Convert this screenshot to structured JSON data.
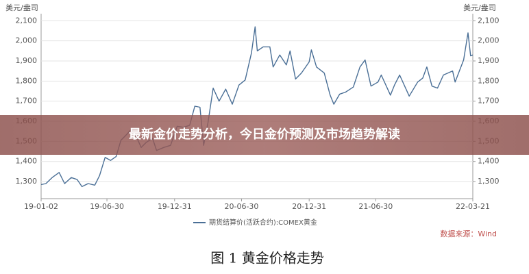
{
  "banner": {
    "title": "最新金价走势分析，今日金价预测及市场趋势解读"
  },
  "chart_data": {
    "type": "line",
    "caption": "图 1  黄金价格走势",
    "source": "数据来源：Wind",
    "y_label": "美元/盎司",
    "y2_label": "美元/盎司",
    "x": [
      "19-01-02",
      "19-01-15",
      "19-02-01",
      "19-02-20",
      "19-03-07",
      "19-03-25",
      "19-04-10",
      "19-04-23",
      "19-05-10",
      "19-05-28",
      "19-06-10",
      "19-06-25",
      "19-07-10",
      "19-07-25",
      "19-08-07",
      "19-08-23",
      "19-09-04",
      "19-09-20",
      "19-10-01",
      "19-10-15",
      "19-11-01",
      "19-11-12",
      "19-12-02",
      "19-12-20",
      "20-01-07",
      "20-01-24",
      "20-02-10",
      "20-02-24",
      "20-03-09",
      "20-03-19",
      "20-03-31",
      "20-04-14",
      "20-04-30",
      "20-05-18",
      "20-06-05",
      "20-06-23",
      "20-07-10",
      "20-07-27",
      "20-08-06",
      "20-08-12",
      "20-08-28",
      "20-09-15",
      "20-09-24",
      "20-10-12",
      "20-10-30",
      "20-11-09",
      "20-11-24",
      "20-12-10",
      "20-12-31",
      "21-01-06",
      "21-01-20",
      "21-02-10",
      "21-02-26",
      "21-03-08",
      "21-03-24",
      "21-04-09",
      "21-04-30",
      "21-05-18",
      "21-06-01",
      "21-06-17",
      "21-07-06",
      "21-07-15",
      "21-08-09",
      "21-08-20",
      "21-09-03",
      "21-09-29",
      "21-10-22",
      "21-11-05",
      "21-11-16",
      "21-11-30",
      "21-12-15",
      "21-12-31",
      "22-01-25",
      "22-02-01",
      "22-02-24",
      "22-03-08",
      "22-03-15",
      "22-03-21"
    ],
    "series": [
      {
        "name": "期货结算价(活跃合约):COMEX黄金",
        "color": "#4a6f96",
        "values": [
          1285,
          1290,
          1320,
          1345,
          1290,
          1320,
          1310,
          1275,
          1290,
          1282,
          1330,
          1420,
          1405,
          1425,
          1505,
          1535,
          1560,
          1515,
          1470,
          1495,
          1515,
          1455,
          1470,
          1480,
          1575,
          1570,
          1580,
          1675,
          1670,
          1480,
          1595,
          1765,
          1700,
          1760,
          1685,
          1780,
          1805,
          1940,
          2070,
          1950,
          1970,
          1970,
          1870,
          1930,
          1880,
          1950,
          1810,
          1840,
          1895,
          1955,
          1870,
          1840,
          1730,
          1685,
          1735,
          1745,
          1770,
          1870,
          1905,
          1775,
          1795,
          1830,
          1730,
          1780,
          1830,
          1725,
          1795,
          1815,
          1870,
          1775,
          1765,
          1830,
          1850,
          1795,
          1905,
          2040,
          1925,
          1930
        ]
      }
    ],
    "xlim": [
      "19-01-02",
      "22-03-21"
    ],
    "xticks": [
      "19-01-02",
      "19-06-30",
      "19-12-31",
      "20-06-30",
      "20-12-31",
      "21-06-30",
      "22-03-21"
    ],
    "ylim": [
      1215,
      2135
    ],
    "yticks": [
      {
        "value": 1300,
        "label": "1,300"
      },
      {
        "value": 1400,
        "label": "1,400"
      },
      {
        "value": 1500,
        "label": "1,500"
      },
      {
        "value": 1600,
        "label": "1,600"
      },
      {
        "value": 1700,
        "label": "1,700"
      },
      {
        "value": 1800,
        "label": "1,800"
      },
      {
        "value": 1900,
        "label": "1,900"
      },
      {
        "value": 2000,
        "label": "2,000"
      },
      {
        "value": 2100,
        "label": "2,100"
      }
    ],
    "y2lim": [
      1215,
      2135
    ],
    "y2ticks": [
      {
        "value": 1300,
        "label": "1,300"
      },
      {
        "value": 1400,
        "label": "1,400"
      },
      {
        "value": 1500,
        "label": "1,500"
      },
      {
        "value": 1600,
        "label": "1,600"
      },
      {
        "value": 1700,
        "label": "1,700"
      },
      {
        "value": 1800,
        "label": "1,800"
      },
      {
        "value": 1900,
        "label": "1,900"
      },
      {
        "value": 2000,
        "label": "2,000"
      },
      {
        "value": 2100,
        "label": "2,100"
      }
    ],
    "grid": true
  }
}
